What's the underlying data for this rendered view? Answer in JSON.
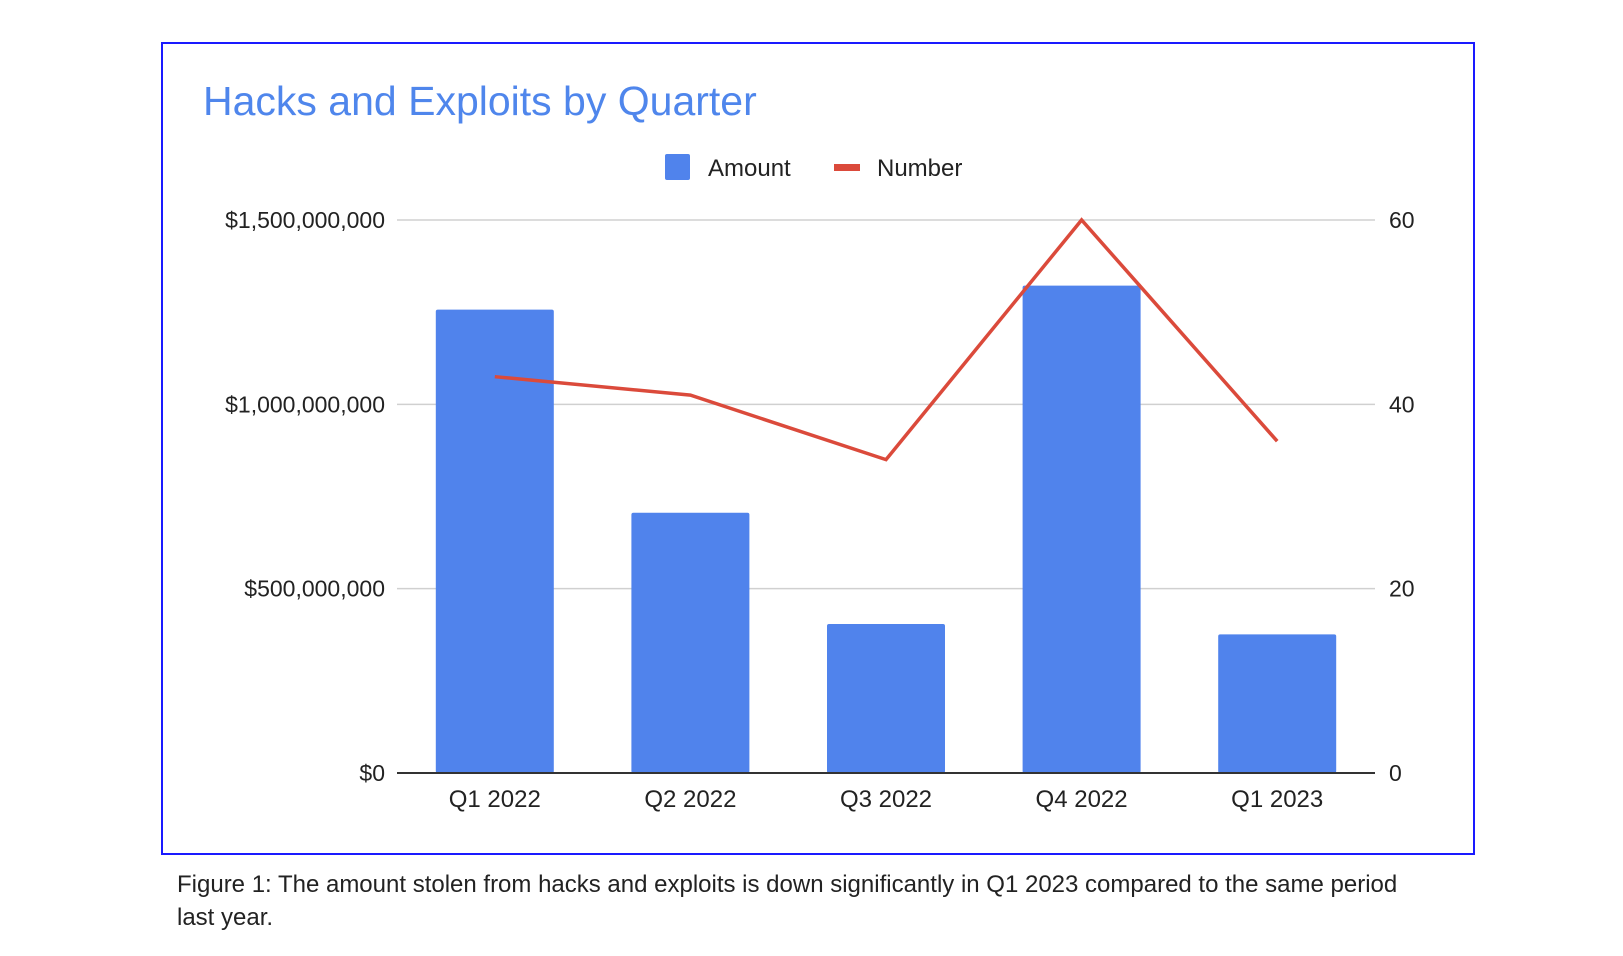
{
  "chart_data": {
    "type": "bar+line",
    "title": "Hacks and Exploits by Quarter",
    "categories": [
      "Q1 2022",
      "Q2 2022",
      "Q3 2022",
      "Q4 2022",
      "Q1 2023"
    ],
    "series": [
      {
        "name": "Amount",
        "type": "bar",
        "axis": "left",
        "color": "#5083ec",
        "values": [
          1257000000,
          706000000,
          404000000,
          1322000000,
          376000000
        ]
      },
      {
        "name": "Number",
        "type": "line",
        "axis": "right",
        "color": "#db4a3b",
        "values": [
          43,
          41,
          34,
          60,
          36
        ]
      }
    ],
    "y_left": {
      "ylim": [
        0,
        1500000000
      ],
      "ticks": [
        "$0",
        "$500,000,000",
        "$1,000,000,000",
        "$1,500,000,000"
      ],
      "tick_values": [
        0,
        500000000,
        1000000000,
        1500000000
      ]
    },
    "y_right": {
      "ylim": [
        0,
        60
      ],
      "ticks": [
        "0",
        "20",
        "40",
        "60"
      ],
      "tick_values": [
        0,
        20,
        40,
        60
      ]
    },
    "grid": true,
    "legend": "top-center"
  },
  "caption": "Figure 1: The amount stolen from hacks and exploits is down significantly in Q1 2023 compared to the same period last year.",
  "colors": {
    "border": "#1a1aff",
    "title": "#4f86ec"
  }
}
